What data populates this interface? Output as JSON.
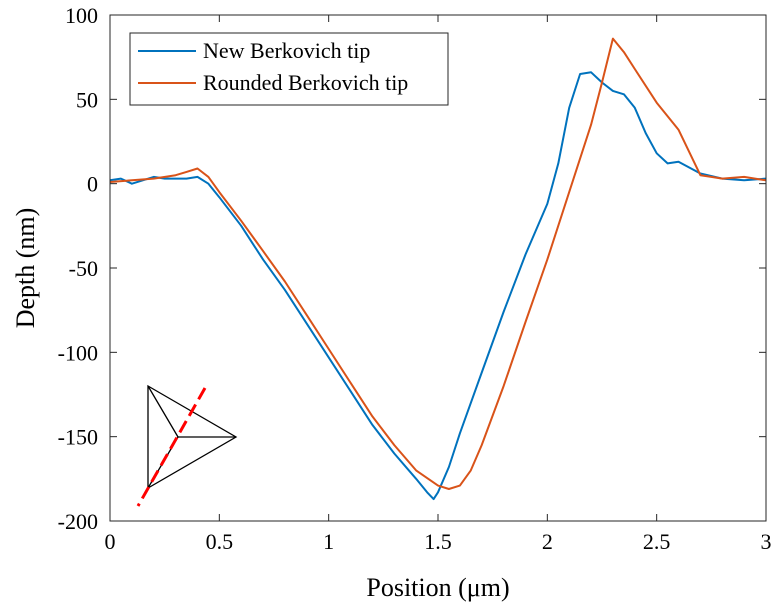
{
  "chart_data": {
    "type": "line",
    "xlabel": "Position (μm)",
    "ylabel": "Depth (nm)",
    "xlim": [
      0,
      3
    ],
    "ylim": [
      -200,
      100
    ],
    "xticks": [
      0,
      0.5,
      1,
      1.5,
      2,
      2.5,
      3
    ],
    "xtick_labels": [
      "0",
      "0.5",
      "1",
      "1.5",
      "2",
      "2.5",
      "3"
    ],
    "yticks": [
      100,
      50,
      0,
      -50,
      -100,
      -150,
      -200
    ],
    "ytick_labels": [
      "100",
      "50",
      "0",
      "-50",
      "-100",
      "-150",
      "-200"
    ],
    "grid": false,
    "legend_position": "top-left",
    "series": [
      {
        "name": "New Berkovich tip",
        "color": "#0072BD",
        "x": [
          0,
          0.05,
          0.1,
          0.15,
          0.2,
          0.25,
          0.3,
          0.35,
          0.4,
          0.45,
          0.5,
          0.6,
          0.7,
          0.8,
          0.9,
          1.0,
          1.1,
          1.2,
          1.3,
          1.4,
          1.45,
          1.48,
          1.5,
          1.55,
          1.6,
          1.7,
          1.8,
          1.9,
          2.0,
          2.05,
          2.1,
          2.15,
          2.2,
          2.25,
          2.3,
          2.35,
          2.4,
          2.45,
          2.5,
          2.55,
          2.6,
          2.7,
          2.8,
          2.9,
          3.0
        ],
        "y": [
          2,
          3,
          0,
          2,
          4,
          3,
          3,
          3,
          4,
          0,
          -8,
          -25,
          -45,
          -63,
          -83,
          -103,
          -123,
          -143,
          -160,
          -175,
          -183,
          -187,
          -183,
          -168,
          -148,
          -112,
          -76,
          -42,
          -12,
          12,
          45,
          65,
          66,
          60,
          55,
          53,
          45,
          30,
          18,
          12,
          13,
          6,
          3,
          2,
          3
        ]
      },
      {
        "name": "Rounded Berkovich tip",
        "color": "#D95319",
        "x": [
          0,
          0.1,
          0.2,
          0.3,
          0.35,
          0.4,
          0.45,
          0.5,
          0.6,
          0.7,
          0.8,
          0.9,
          1.0,
          1.1,
          1.2,
          1.3,
          1.4,
          1.5,
          1.55,
          1.6,
          1.65,
          1.7,
          1.8,
          1.9,
          2.0,
          2.1,
          2.2,
          2.25,
          2.3,
          2.35,
          2.4,
          2.5,
          2.6,
          2.7,
          2.75,
          2.8,
          2.9,
          3.0
        ],
        "y": [
          1,
          2,
          3,
          5,
          7,
          9,
          4,
          -5,
          -22,
          -40,
          -58,
          -78,
          -98,
          -118,
          -138,
          -155,
          -170,
          -179,
          -181,
          -179,
          -170,
          -155,
          -120,
          -82,
          -45,
          -5,
          35,
          60,
          86,
          78,
          68,
          48,
          32,
          5,
          4,
          3,
          4,
          2
        ]
      }
    ]
  },
  "inset": {
    "icon": "berkovich-triangle-icon",
    "cut_line_color": "#FF0000"
  }
}
